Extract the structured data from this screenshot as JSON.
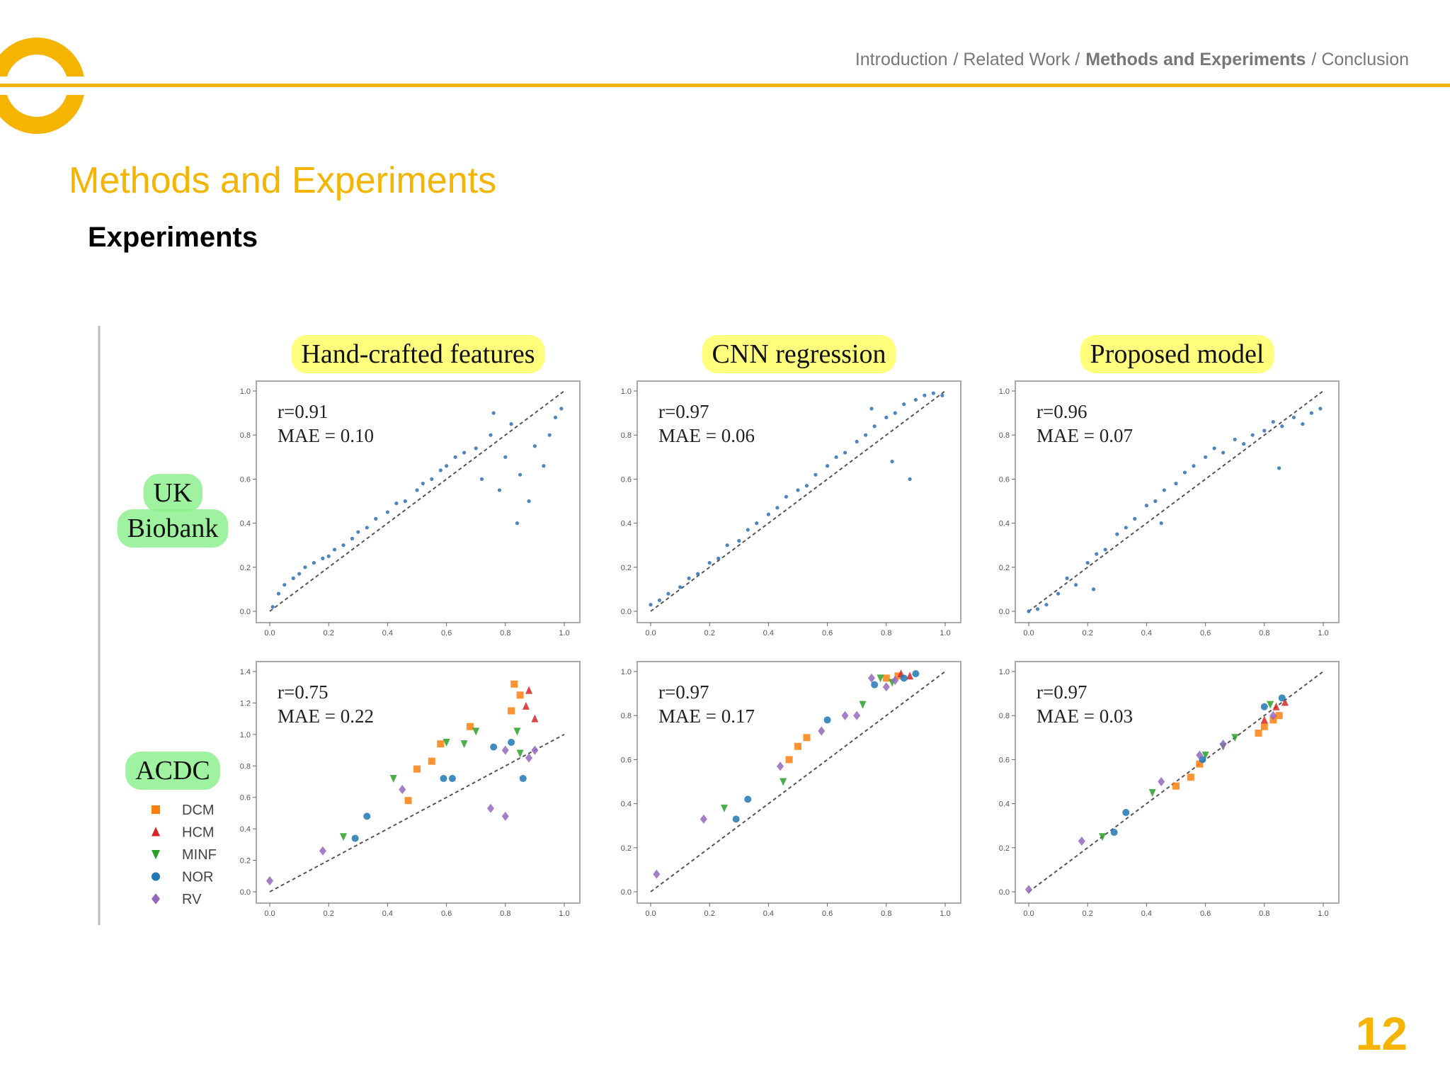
{
  "header": {
    "nav": [
      "Introduction",
      "/ Related Work /",
      "Methods and Experiments",
      "/ Conclusion"
    ],
    "title": "Methods and Experiments",
    "subtitle": "Experiments",
    "page_number": "12"
  },
  "figure": {
    "columns": [
      "Hand-crafted features",
      "CNN regression",
      "Proposed model"
    ],
    "rows": [
      [
        "UK",
        "Biobank"
      ],
      [
        "ACDC"
      ]
    ]
  },
  "chart_data": [
    {
      "type": "scatter",
      "annotations": [
        "r=0.91",
        "MAE = 0.10"
      ],
      "xlim": [
        0,
        1
      ],
      "ylim": [
        0,
        1
      ],
      "xticks": [
        {
          "value": 0,
          "label": "0.0"
        },
        0.2,
        0.4,
        0.6,
        0.8,
        {
          "value": 1,
          "label": "1.0"
        }
      ],
      "yticks": [
        {
          "value": 0,
          "label": "0.0"
        },
        0.2,
        0.4,
        0.6,
        0.8,
        {
          "value": 1,
          "label": "1.0"
        }
      ],
      "series": [
        {
          "color": "#3a78b5",
          "marker": "o",
          "x": [
            0.01,
            0.03,
            0.05,
            0.08,
            0.1,
            0.12,
            0.15,
            0.18,
            0.2,
            0.22,
            0.25,
            0.28,
            0.3,
            0.33,
            0.36,
            0.4,
            0.43,
            0.46,
            0.5,
            0.52,
            0.55,
            0.58,
            0.6,
            0.63,
            0.66,
            0.7,
            0.72,
            0.75,
            0.78,
            0.8,
            0.82,
            0.85,
            0.88,
            0.9,
            0.93,
            0.95,
            0.97,
            0.99,
            0.84,
            0.76
          ],
          "values": [
            0.02,
            0.08,
            0.12,
            0.15,
            0.17,
            0.2,
            0.22,
            0.24,
            0.25,
            0.28,
            0.3,
            0.33,
            0.36,
            0.38,
            0.42,
            0.45,
            0.49,
            0.5,
            0.55,
            0.58,
            0.6,
            0.64,
            0.66,
            0.7,
            0.72,
            0.74,
            0.6,
            0.8,
            0.55,
            0.7,
            0.85,
            0.62,
            0.5,
            0.75,
            0.66,
            0.8,
            0.88,
            0.92,
            0.4,
            0.9
          ]
        }
      ]
    },
    {
      "type": "scatter",
      "annotations": [
        "r=0.97",
        "MAE = 0.06"
      ],
      "xlim": [
        0,
        1
      ],
      "ylim": [
        0,
        1
      ],
      "xticks": [
        {
          "value": 0,
          "label": "0.0"
        },
        0.2,
        0.4,
        0.6,
        0.8,
        {
          "value": 1,
          "label": "1.0"
        }
      ],
      "yticks": [
        {
          "value": 0,
          "label": "0.0"
        },
        0.2,
        0.4,
        0.6,
        0.8,
        {
          "value": 1,
          "label": "1.0"
        }
      ],
      "series": [
        {
          "color": "#3a78b5",
          "marker": "o",
          "x": [
            0.0,
            0.03,
            0.06,
            0.1,
            0.13,
            0.16,
            0.2,
            0.23,
            0.26,
            0.3,
            0.33,
            0.36,
            0.4,
            0.43,
            0.46,
            0.5,
            0.53,
            0.56,
            0.6,
            0.63,
            0.66,
            0.7,
            0.73,
            0.76,
            0.8,
            0.83,
            0.86,
            0.9,
            0.93,
            0.96,
            0.99,
            0.88,
            0.82,
            0.75
          ],
          "values": [
            0.03,
            0.05,
            0.08,
            0.11,
            0.15,
            0.17,
            0.22,
            0.24,
            0.3,
            0.32,
            0.37,
            0.4,
            0.44,
            0.47,
            0.52,
            0.55,
            0.57,
            0.62,
            0.66,
            0.7,
            0.72,
            0.77,
            0.8,
            0.84,
            0.88,
            0.9,
            0.94,
            0.96,
            0.98,
            0.99,
            0.98,
            0.6,
            0.68,
            0.92
          ]
        }
      ]
    },
    {
      "type": "scatter",
      "annotations": [
        "r=0.96",
        "MAE = 0.07"
      ],
      "xlim": [
        0,
        1
      ],
      "ylim": [
        0,
        1
      ],
      "xticks": [
        {
          "value": 0,
          "label": "0.0"
        },
        0.2,
        0.4,
        0.6,
        0.8,
        {
          "value": 1,
          "label": "1.0"
        }
      ],
      "yticks": [
        {
          "value": 0,
          "label": "0.0"
        },
        0.2,
        0.4,
        0.6,
        0.8,
        {
          "value": 1,
          "label": "1.0"
        }
      ],
      "series": [
        {
          "color": "#3a78b5",
          "marker": "o",
          "x": [
            0.0,
            0.03,
            0.06,
            0.1,
            0.13,
            0.16,
            0.2,
            0.23,
            0.26,
            0.3,
            0.33,
            0.36,
            0.4,
            0.43,
            0.46,
            0.5,
            0.53,
            0.56,
            0.6,
            0.63,
            0.66,
            0.7,
            0.73,
            0.76,
            0.8,
            0.83,
            0.86,
            0.9,
            0.93,
            0.96,
            0.99,
            0.85,
            0.22,
            0.45
          ],
          "values": [
            0.0,
            0.01,
            0.03,
            0.08,
            0.15,
            0.12,
            0.22,
            0.26,
            0.28,
            0.35,
            0.38,
            0.42,
            0.48,
            0.5,
            0.55,
            0.58,
            0.63,
            0.66,
            0.7,
            0.74,
            0.72,
            0.78,
            0.76,
            0.8,
            0.82,
            0.86,
            0.84,
            0.88,
            0.85,
            0.9,
            0.92,
            0.65,
            0.1,
            0.4
          ]
        }
      ]
    },
    {
      "type": "scatter",
      "annotations": [
        "r=0.75",
        "MAE = 0.22"
      ],
      "xlim": [
        0,
        1
      ],
      "ylim": [
        0,
        1.4
      ],
      "xticks": [
        {
          "value": 0,
          "label": "0.0"
        },
        0.2,
        0.4,
        0.6,
        0.8,
        {
          "value": 1,
          "label": "1.0"
        }
      ],
      "yticks": [
        {
          "value": 0,
          "label": "0.0"
        },
        0.2,
        0.4,
        0.6,
        0.8,
        {
          "value": 1,
          "label": "1.0"
        },
        1.2,
        1.4
      ],
      "series": [
        {
          "name": "DCM",
          "color": "#ff7f0e",
          "marker": "s",
          "x": [
            0.47,
            0.5,
            0.55,
            0.58,
            0.68,
            0.83,
            0.85,
            0.82
          ],
          "values": [
            0.58,
            0.78,
            0.83,
            0.94,
            1.05,
            1.32,
            1.25,
            1.15
          ]
        },
        {
          "name": "HCM",
          "color": "#d62728",
          "marker": "^",
          "x": [
            0.87,
            0.9,
            0.88
          ],
          "values": [
            1.18,
            1.1,
            1.28
          ]
        },
        {
          "name": "MINF",
          "color": "#2ca02c",
          "marker": "v",
          "x": [
            0.25,
            0.42,
            0.6,
            0.66,
            0.7,
            0.85,
            0.84
          ],
          "values": [
            0.35,
            0.72,
            0.95,
            0.94,
            1.02,
            0.88,
            1.02
          ]
        },
        {
          "name": "NOR",
          "color": "#1f77b4",
          "marker": "o",
          "x": [
            0.29,
            0.33,
            0.59,
            0.62,
            0.82,
            0.86,
            0.76
          ],
          "values": [
            0.34,
            0.48,
            0.72,
            0.72,
            0.95,
            0.72,
            0.92
          ]
        },
        {
          "name": "RV",
          "color": "#9467bd",
          "marker": "D",
          "x": [
            0.0,
            0.18,
            0.45,
            0.75,
            0.8,
            0.8,
            0.88,
            0.9
          ],
          "values": [
            0.07,
            0.26,
            0.65,
            0.53,
            0.48,
            0.9,
            0.85,
            0.9
          ]
        }
      ]
    },
    {
      "type": "scatter",
      "annotations": [
        "r=0.97",
        "MAE = 0.17"
      ],
      "xlim": [
        0,
        1
      ],
      "ylim": [
        0,
        1
      ],
      "xticks": [
        {
          "value": 0,
          "label": "0.0"
        },
        0.2,
        0.4,
        0.6,
        0.8,
        {
          "value": 1,
          "label": "1.0"
        }
      ],
      "yticks": [
        {
          "value": 0,
          "label": "0.0"
        },
        0.2,
        0.4,
        0.6,
        0.8,
        {
          "value": 1,
          "label": "1.0"
        }
      ],
      "series": [
        {
          "name": "DCM",
          "color": "#ff7f0e",
          "marker": "s",
          "x": [
            0.47,
            0.5,
            0.53,
            0.8,
            0.84
          ],
          "values": [
            0.6,
            0.66,
            0.7,
            0.97,
            0.98
          ]
        },
        {
          "name": "HCM",
          "color": "#d62728",
          "marker": "^",
          "x": [
            0.85,
            0.88
          ],
          "values": [
            0.99,
            0.98
          ]
        },
        {
          "name": "MINF",
          "color": "#2ca02c",
          "marker": "v",
          "x": [
            0.25,
            0.45,
            0.72,
            0.78,
            0.82
          ],
          "values": [
            0.38,
            0.5,
            0.85,
            0.97,
            0.95
          ]
        },
        {
          "name": "NOR",
          "color": "#1f77b4",
          "marker": "o",
          "x": [
            0.29,
            0.33,
            0.6,
            0.76,
            0.86,
            0.9
          ],
          "values": [
            0.33,
            0.42,
            0.78,
            0.94,
            0.97,
            0.99
          ]
        },
        {
          "name": "RV",
          "color": "#9467bd",
          "marker": "D",
          "x": [
            0.02,
            0.18,
            0.44,
            0.58,
            0.66,
            0.7,
            0.8,
            0.83,
            0.75
          ],
          "values": [
            0.08,
            0.33,
            0.57,
            0.73,
            0.8,
            0.8,
            0.93,
            0.96,
            0.97
          ]
        }
      ]
    },
    {
      "type": "scatter",
      "annotations": [
        "r=0.97",
        "MAE = 0.03"
      ],
      "xlim": [
        0,
        1
      ],
      "ylim": [
        0,
        1
      ],
      "xticks": [
        {
          "value": 0,
          "label": "0.0"
        },
        0.2,
        0.4,
        0.6,
        0.8,
        {
          "value": 1,
          "label": "1.0"
        }
      ],
      "yticks": [
        {
          "value": 0,
          "label": "0.0"
        },
        0.2,
        0.4,
        0.6,
        0.8,
        {
          "value": 1,
          "label": "1.0"
        }
      ],
      "series": [
        {
          "name": "DCM",
          "color": "#ff7f0e",
          "marker": "s",
          "x": [
            0.5,
            0.55,
            0.58,
            0.78,
            0.8,
            0.83,
            0.85
          ],
          "values": [
            0.48,
            0.52,
            0.58,
            0.72,
            0.75,
            0.78,
            0.8
          ]
        },
        {
          "name": "HCM",
          "color": "#d62728",
          "marker": "^",
          "x": [
            0.84,
            0.87,
            0.8
          ],
          "values": [
            0.84,
            0.86,
            0.78
          ]
        },
        {
          "name": "MINF",
          "color": "#2ca02c",
          "marker": "v",
          "x": [
            0.25,
            0.42,
            0.6,
            0.66,
            0.7,
            0.82
          ],
          "values": [
            0.25,
            0.45,
            0.62,
            0.66,
            0.7,
            0.85
          ]
        },
        {
          "name": "NOR",
          "color": "#1f77b4",
          "marker": "o",
          "x": [
            0.29,
            0.33,
            0.59,
            0.8,
            0.86
          ],
          "values": [
            0.27,
            0.36,
            0.6,
            0.84,
            0.88
          ]
        },
        {
          "name": "RV",
          "color": "#9467bd",
          "marker": "D",
          "x": [
            0.0,
            0.18,
            0.45,
            0.58,
            0.66,
            0.83
          ],
          "values": [
            0.01,
            0.23,
            0.5,
            0.62,
            0.67,
            0.8
          ]
        }
      ]
    }
  ]
}
